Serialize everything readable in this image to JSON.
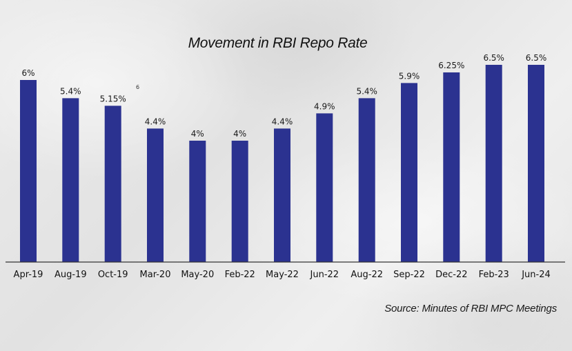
{
  "title": "Movement in RBI Repo Rate",
  "source": "Source: Minutes of RBI MPC Meetings",
  "stray_mark": "6",
  "colors": {
    "bar": "#2b3290",
    "axis": "#333333"
  },
  "chart_data": {
    "type": "bar",
    "title": "Movement in RBI Repo Rate",
    "xlabel": "",
    "ylabel": "",
    "ylim": [
      0,
      6.5
    ],
    "grid": false,
    "legend": "none",
    "categories": [
      "Apr-19",
      "Aug-19",
      "Oct-19",
      "Mar-20",
      "May-20",
      "Feb-22",
      "May-22",
      "Jun-22",
      "Aug-22",
      "Sep-22",
      "Dec-22",
      "Feb-23",
      "Jun-24"
    ],
    "values": [
      6,
      5.4,
      5.15,
      4.4,
      4,
      4,
      4.4,
      4.9,
      5.4,
      5.9,
      6.25,
      6.5,
      6.5
    ],
    "value_labels": [
      "6%",
      "5.4%",
      "5.15%",
      "4.4%",
      "4%",
      "4%",
      "4.4%",
      "4.9%",
      "5.4%",
      "5.9%",
      "6.25%",
      "6.5%",
      "6.5%"
    ]
  }
}
